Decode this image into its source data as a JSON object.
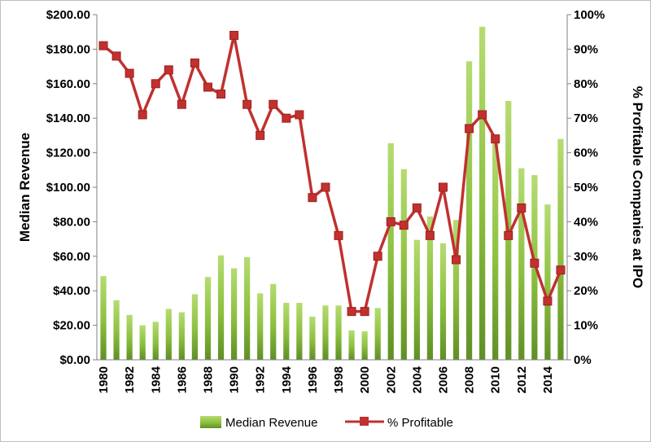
{
  "chart_data": {
    "type": "bar+line",
    "x": [
      1980,
      1981,
      1982,
      1983,
      1984,
      1985,
      1986,
      1987,
      1988,
      1989,
      1990,
      1991,
      1992,
      1993,
      1994,
      1995,
      1996,
      1997,
      1998,
      1999,
      2000,
      2001,
      2002,
      2003,
      2004,
      2005,
      2006,
      2007,
      2008,
      2009,
      2010,
      2011,
      2012,
      2013,
      2014,
      2015
    ],
    "x_tick_labels": [
      "1980",
      "1982",
      "1984",
      "1986",
      "1988",
      "1990",
      "1992",
      "1994",
      "1996",
      "1998",
      "2000",
      "2002",
      "2004",
      "2006",
      "2008",
      "2010",
      "2012",
      "2014"
    ],
    "series": [
      {
        "name": "Median Revenue",
        "type": "bar",
        "axis": "left",
        "color": "#8cbf3f",
        "values": [
          48.5,
          34.5,
          26,
          20,
          22,
          29.5,
          27.5,
          38,
          48,
          60.5,
          53,
          59.5,
          38.5,
          44,
          33,
          33,
          25,
          31.5,
          31.5,
          17,
          16.5,
          30,
          125.5,
          110.5,
          69.5,
          83,
          67.5,
          81,
          173,
          193,
          127,
          150,
          111,
          107,
          90,
          128
        ]
      },
      {
        "name": "% Profitable",
        "type": "line",
        "axis": "right",
        "color": "#c0312f",
        "values": [
          91,
          88,
          83,
          71,
          80,
          84,
          74,
          86,
          79,
          77,
          94,
          74,
          65,
          74,
          70,
          71,
          47,
          50,
          36,
          14,
          14,
          30,
          40,
          39,
          44,
          36,
          50,
          29,
          67,
          71,
          64,
          36,
          44,
          28,
          17,
          26
        ]
      }
    ],
    "y_left": {
      "label": "Median Revenue",
      "min": 0,
      "max": 200,
      "tick_labels": [
        "$0.00",
        "$20.00",
        "$40.00",
        "$60.00",
        "$80.00",
        "$100.00",
        "$120.00",
        "$140.00",
        "$160.00",
        "$180.00",
        "$200.00"
      ]
    },
    "y_right": {
      "label": "% Profitable Companies at IPO",
      "min": 0,
      "max": 100,
      "tick_labels": [
        "0%",
        "10%",
        "20%",
        "30%",
        "40%",
        "50%",
        "60%",
        "70%",
        "80%",
        "90%",
        "100%"
      ]
    },
    "legend_position": "bottom",
    "grid": false
  }
}
